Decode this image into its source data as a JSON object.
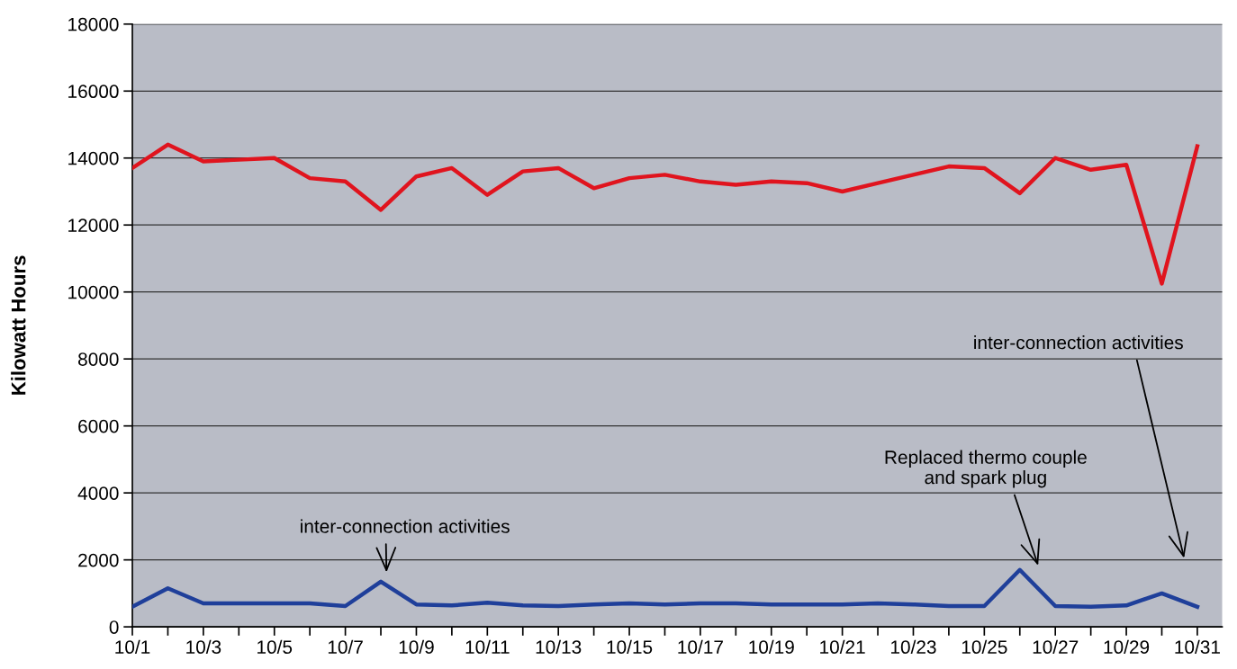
{
  "chart_data": {
    "type": "line",
    "ylabel": "Kilowatt Hours",
    "categories": [
      "10/1",
      null,
      "10/3",
      null,
      "10/5",
      null,
      "10/7",
      null,
      "10/9",
      null,
      "10/11",
      null,
      "10/13",
      null,
      "10/15",
      null,
      "10/17",
      null,
      "10/19",
      null,
      "10/21",
      null,
      "10/23",
      null,
      "10/25",
      null,
      "10/27",
      null,
      "10/29",
      null,
      "10/31"
    ],
    "series": [
      {
        "color": "#e0141e",
        "values": [
          13700,
          14400,
          13900,
          13950,
          14000,
          13400,
          13300,
          12450,
          13450,
          13700,
          12900,
          13600,
          13700,
          13100,
          13400,
          13500,
          13300,
          13200,
          13300,
          13250,
          13000,
          13250,
          13500,
          13750,
          13700,
          12950,
          14000,
          13650,
          13800,
          10250,
          14350
        ]
      },
      {
        "color": "#1f3f9a",
        "values": [
          600,
          1150,
          700,
          700,
          700,
          700,
          620,
          1350,
          670,
          640,
          720,
          640,
          620,
          670,
          700,
          670,
          700,
          700,
          670,
          670,
          670,
          700,
          670,
          620,
          620,
          1700,
          620,
          600,
          640,
          1000,
          600
        ]
      }
    ],
    "ylim": [
      0,
      18000
    ],
    "yticks": [
      0,
      2000,
      4000,
      6000,
      8000,
      10000,
      12000,
      14000,
      16000,
      18000
    ],
    "grid": "y",
    "line_style": "solid",
    "annotations": [
      "inter-connection activities",
      "Replaced thermo couple\nand spark plug",
      "inter-connection activities"
    ]
  }
}
